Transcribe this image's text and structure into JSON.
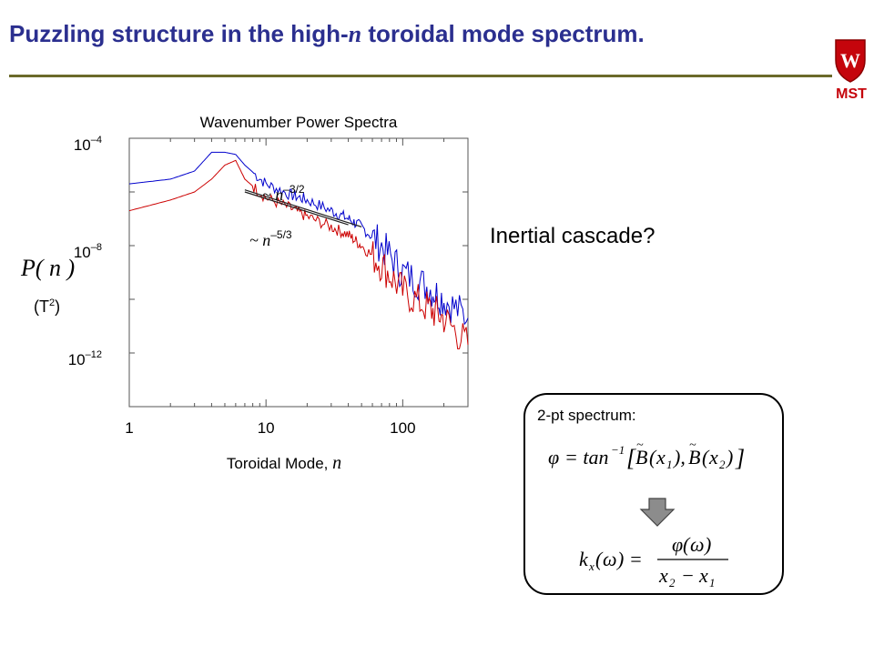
{
  "slide": {
    "title_part1": "Puzzling structure in the high-",
    "title_italic": "n",
    "title_part2": " toroidal mode spectrum.",
    "logo_letter": "W",
    "logo_text": "MST",
    "accent_color": "#2b2f8f",
    "rule_color": "#6b6a2a",
    "logo_color": "#c5050c"
  },
  "annotation": {
    "text": "Inertial cascade?"
  },
  "panel": {
    "label": "2-pt spectrum:",
    "arrow_icon": "down-arrow-icon"
  },
  "chart_data": {
    "type": "line",
    "title": "Wavenumber Power Spectra",
    "xlabel_text": "Toroidal Mode, ",
    "xlabel_var": "n",
    "ylabel_text": "P( n )",
    "ylabel_unit": "T",
    "ylabel_unit_power": "2",
    "xscale": "log",
    "yscale": "log",
    "xlim": [
      1,
      300
    ],
    "ylim": [
      1e-14,
      0.0001
    ],
    "xticks": [
      {
        "value": 1,
        "label": "1"
      },
      {
        "value": 10,
        "label": "10"
      },
      {
        "value": 100,
        "label": "100"
      }
    ],
    "yticks": [
      {
        "value": 0.0001,
        "base": "10",
        "exp": "–4"
      },
      {
        "value": 1e-08,
        "base": "10",
        "exp": "–8"
      },
      {
        "value": 1e-12,
        "base": "10",
        "exp": "–12"
      }
    ],
    "series": [
      {
        "color": "#0000cc",
        "x": [
          1,
          2,
          3,
          4,
          5,
          6,
          7,
          10,
          15,
          20,
          30,
          40,
          50,
          70,
          100,
          150,
          200,
          300
        ],
        "y": [
          2e-06,
          3e-06,
          6e-06,
          3e-05,
          3e-05,
          2.5e-05,
          1e-05,
          2e-06,
          8e-07,
          5e-07,
          2e-07,
          1e-07,
          5e-08,
          1e-08,
          1e-09,
          3e-10,
          1e-10,
          2e-11
        ]
      },
      {
        "color": "#cc0000",
        "x": [
          1,
          2,
          3,
          4,
          5,
          6,
          7,
          10,
          15,
          20,
          30,
          40,
          50,
          70,
          100,
          150,
          200,
          300
        ],
        "y": [
          2e-07,
          5e-07,
          1e-06,
          3e-06,
          1e-05,
          1.5e-05,
          3e-06,
          6e-07,
          2.5e-07,
          1.2e-07,
          5e-08,
          2.5e-08,
          1e-08,
          2e-09,
          2e-10,
          5e-11,
          2e-11,
          2e-12
        ]
      }
    ],
    "fits": [
      {
        "label": "~ n",
        "power": "–3/2",
        "x": [
          7,
          50
        ],
        "y": [
          1.2e-06,
          5e-08
        ]
      },
      {
        "label": "~ n",
        "power": "–5/3",
        "x": [
          7,
          40
        ],
        "y": [
          1e-06,
          6e-08
        ]
      }
    ],
    "grid": false
  }
}
